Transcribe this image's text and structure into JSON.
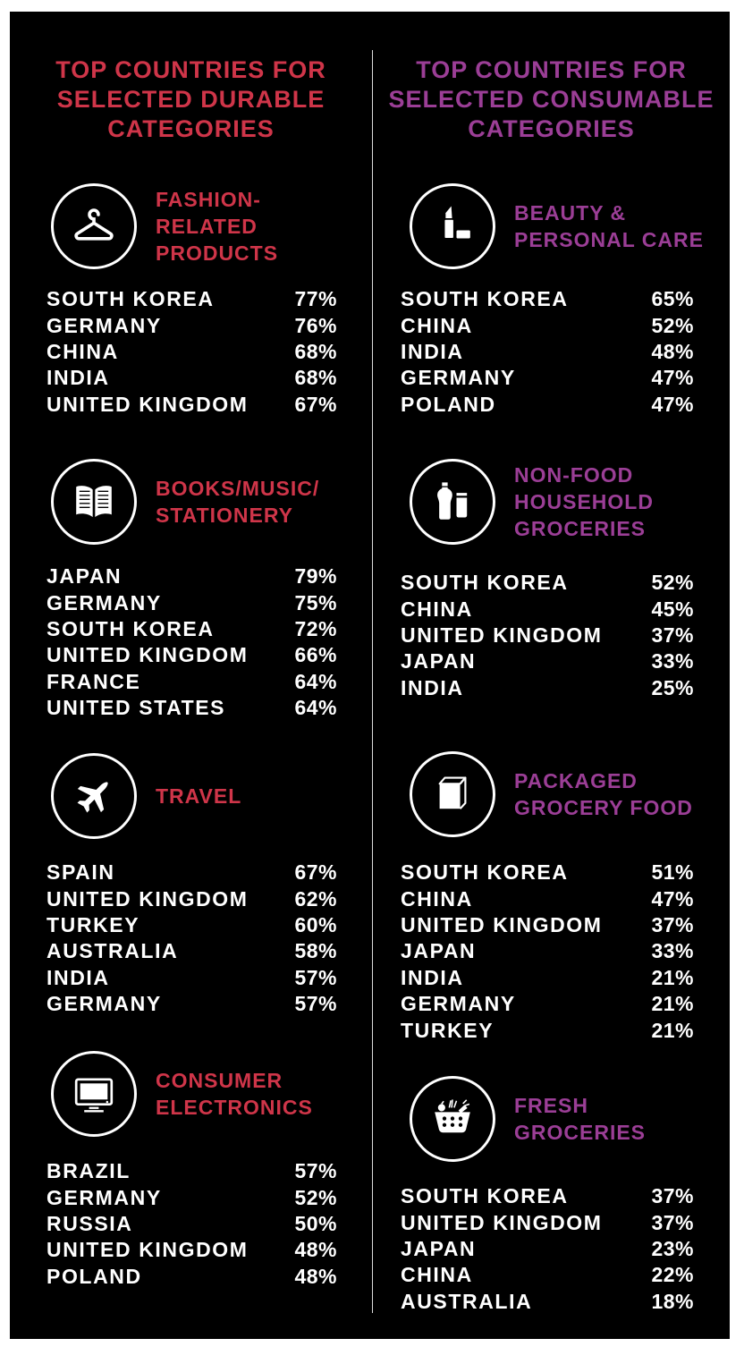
{
  "colors": {
    "durable_accent": "#CF3549",
    "consumable_accent": "#9B3E96",
    "text": "#FFFFFF",
    "panel_background": "#000000",
    "page_background": "#FFFFFF"
  },
  "durable": {
    "title": "TOP COUNTRIES FOR\nSELECTED DURABLE\nCATEGORIES",
    "sections": [
      {
        "icon": "hanger-icon",
        "label": "FASHION-RELATED\nPRODUCTS",
        "rows": [
          {
            "country": "SOUTH KOREA",
            "percent": "77%"
          },
          {
            "country": "GERMANY",
            "percent": "76%"
          },
          {
            "country": "CHINA",
            "percent": "68%"
          },
          {
            "country": "INDIA",
            "percent": "68%"
          },
          {
            "country": "UNITED KINGDOM",
            "percent": "67%"
          }
        ]
      },
      {
        "icon": "open-book-icon",
        "label": "BOOKS/MUSIC/\nSTATIONERY",
        "rows": [
          {
            "country": "JAPAN",
            "percent": "79%"
          },
          {
            "country": "GERMANY",
            "percent": "75%"
          },
          {
            "country": "SOUTH KOREA",
            "percent": "72%"
          },
          {
            "country": "UNITED KINGDOM",
            "percent": "66%"
          },
          {
            "country": "FRANCE",
            "percent": "64%"
          },
          {
            "country": "UNITED STATES",
            "percent": "64%"
          }
        ]
      },
      {
        "icon": "airplane-icon",
        "label": "TRAVEL",
        "rows": [
          {
            "country": "SPAIN",
            "percent": "67%"
          },
          {
            "country": "UNITED KINGDOM",
            "percent": "62%"
          },
          {
            "country": "TURKEY",
            "percent": "60%"
          },
          {
            "country": "AUSTRALIA",
            "percent": "58%"
          },
          {
            "country": "INDIA",
            "percent": "57%"
          },
          {
            "country": "GERMANY",
            "percent": "57%"
          }
        ]
      },
      {
        "icon": "tv-icon",
        "label": "CONSUMER\nELECTRONICS",
        "rows": [
          {
            "country": "BRAZIL",
            "percent": "57%"
          },
          {
            "country": "GERMANY",
            "percent": "52%"
          },
          {
            "country": "RUSSIA",
            "percent": "50%"
          },
          {
            "country": "UNITED KINGDOM",
            "percent": "48%"
          },
          {
            "country": "POLAND",
            "percent": "48%"
          }
        ]
      }
    ]
  },
  "consumable": {
    "title": "TOP COUNTRIES FOR\nSELECTED CONSUMABLE\nCATEGORIES",
    "sections": [
      {
        "icon": "lipstick-icon",
        "label": "BEAUTY &\nPERSONAL CARE",
        "rows": [
          {
            "country": "SOUTH KOREA",
            "percent": "65%"
          },
          {
            "country": "CHINA",
            "percent": "52%"
          },
          {
            "country": "INDIA",
            "percent": "48%"
          },
          {
            "country": "GERMANY",
            "percent": "47%"
          },
          {
            "country": "POLAND",
            "percent": "47%"
          }
        ]
      },
      {
        "icon": "bottle-tube-icon",
        "label": "NON-FOOD\nHOUSEHOLD\nGROCERIES",
        "rows": [
          {
            "country": "SOUTH KOREA",
            "percent": "52%"
          },
          {
            "country": "CHINA",
            "percent": "45%"
          },
          {
            "country": "UNITED KINGDOM",
            "percent": "37%"
          },
          {
            "country": "JAPAN",
            "percent": "33%"
          },
          {
            "country": "INDIA",
            "percent": "25%"
          }
        ]
      },
      {
        "icon": "box-icon",
        "label": "PACKAGED\nGROCERY FOOD",
        "rows": [
          {
            "country": "SOUTH KOREA",
            "percent": "51%"
          },
          {
            "country": "CHINA",
            "percent": "47%"
          },
          {
            "country": "UNITED KINGDOM",
            "percent": "37%"
          },
          {
            "country": "JAPAN",
            "percent": "33%"
          },
          {
            "country": "INDIA",
            "percent": "21%"
          },
          {
            "country": "GERMANY",
            "percent": "21%"
          },
          {
            "country": "TURKEY",
            "percent": "21%"
          }
        ]
      },
      {
        "icon": "basket-icon",
        "label": "FRESH GROCERIES",
        "rows": [
          {
            "country": "SOUTH KOREA",
            "percent": "37%"
          },
          {
            "country": "UNITED KINGDOM",
            "percent": "37%"
          },
          {
            "country": "JAPAN",
            "percent": "23%"
          },
          {
            "country": "CHINA",
            "percent": "22%"
          },
          {
            "country": "AUSTRALIA",
            "percent": "18%"
          }
        ]
      }
    ]
  },
  "chart_data": {
    "type": "table",
    "panels": [
      {
        "title": "TOP COUNTRIES FOR SELECTED DURABLE CATEGORIES",
        "categories": [
          {
            "name": "FASHION-RELATED PRODUCTS",
            "countries": [
              "SOUTH KOREA",
              "GERMANY",
              "CHINA",
              "INDIA",
              "UNITED KINGDOM"
            ],
            "values": [
              77,
              76,
              68,
              68,
              67
            ]
          },
          {
            "name": "BOOKS/MUSIC/STATIONERY",
            "countries": [
              "JAPAN",
              "GERMANY",
              "SOUTH KOREA",
              "UNITED KINGDOM",
              "FRANCE",
              "UNITED STATES"
            ],
            "values": [
              79,
              75,
              72,
              66,
              64,
              64
            ]
          },
          {
            "name": "TRAVEL",
            "countries": [
              "SPAIN",
              "UNITED KINGDOM",
              "TURKEY",
              "AUSTRALIA",
              "INDIA",
              "GERMANY"
            ],
            "values": [
              67,
              62,
              60,
              58,
              57,
              57
            ]
          },
          {
            "name": "CONSUMER ELECTRONICS",
            "countries": [
              "BRAZIL",
              "GERMANY",
              "RUSSIA",
              "UNITED KINGDOM",
              "POLAND"
            ],
            "values": [
              57,
              52,
              50,
              48,
              48
            ]
          }
        ]
      },
      {
        "title": "TOP COUNTRIES FOR SELECTED CONSUMABLE CATEGORIES",
        "categories": [
          {
            "name": "BEAUTY & PERSONAL CARE",
            "countries": [
              "SOUTH KOREA",
              "CHINA",
              "INDIA",
              "GERMANY",
              "POLAND"
            ],
            "values": [
              65,
              52,
              48,
              47,
              47
            ]
          },
          {
            "name": "NON-FOOD HOUSEHOLD GROCERIES",
            "countries": [
              "SOUTH KOREA",
              "CHINA",
              "UNITED KINGDOM",
              "JAPAN",
              "INDIA"
            ],
            "values": [
              52,
              45,
              37,
              33,
              25
            ]
          },
          {
            "name": "PACKAGED GROCERY FOOD",
            "countries": [
              "SOUTH KOREA",
              "CHINA",
              "UNITED KINGDOM",
              "JAPAN",
              "INDIA",
              "GERMANY",
              "TURKEY"
            ],
            "values": [
              51,
              47,
              37,
              33,
              21,
              21,
              21
            ]
          },
          {
            "name": "FRESH GROCERIES",
            "countries": [
              "SOUTH KOREA",
              "UNITED KINGDOM",
              "JAPAN",
              "CHINA",
              "AUSTRALIA"
            ],
            "values": [
              37,
              37,
              23,
              22,
              18
            ]
          }
        ]
      }
    ]
  }
}
